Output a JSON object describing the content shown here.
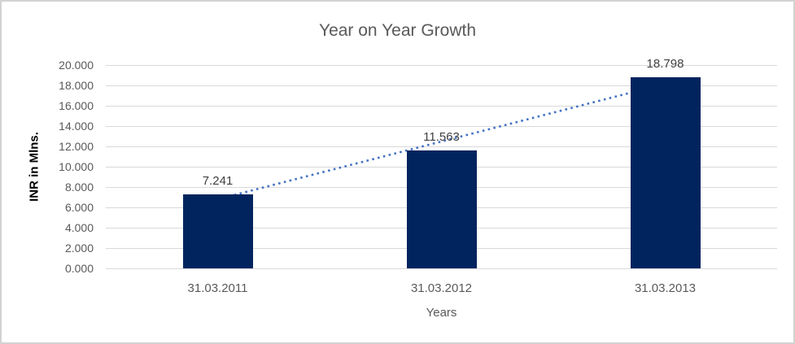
{
  "chart_data": {
    "type": "bar",
    "title": "Year on Year Growth",
    "xlabel": "Years",
    "ylabel": "INR in Mlns.",
    "categories": [
      "31.03.2011",
      "31.03.2012",
      "31.03.2013"
    ],
    "values": [
      7.241,
      11.563,
      18.798
    ],
    "data_labels": [
      "7.241",
      "11.563",
      "18.798"
    ],
    "ylim": [
      0,
      20
    ],
    "ytick_step": 2,
    "ytick_labels": [
      "0.000",
      "2.000",
      "4.000",
      "6.000",
      "8.000",
      "10.000",
      "12.000",
      "14.000",
      "16.000",
      "18.000",
      "20.000"
    ],
    "grid": true,
    "legend": "none",
    "bar_color": "#02245e",
    "gridline_color": "#d9d9d9",
    "trendline": {
      "type": "linear",
      "style": "dotted",
      "color": "#4472c4",
      "start": {
        "category_index": 0,
        "value": 6.8
      },
      "end": {
        "category_index": 2,
        "value": 18.16
      }
    }
  },
  "frame": {
    "background": "#ffffff",
    "border_color": "#d2d2d2"
  }
}
